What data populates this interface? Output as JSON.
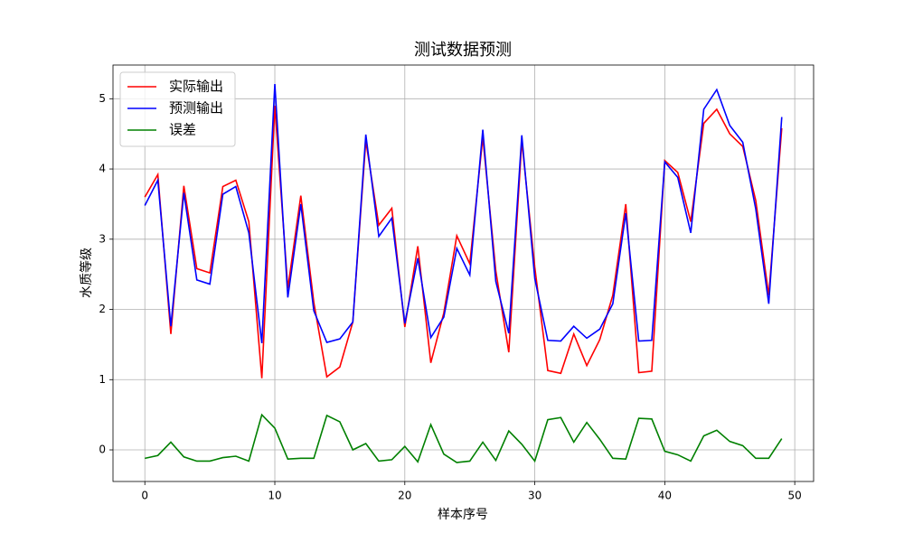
{
  "chart_data": {
    "type": "line",
    "title": "测试数据预测",
    "x_label": "样本序号",
    "y_label": "水质等级",
    "x": [
      0,
      1,
      2,
      3,
      4,
      5,
      6,
      7,
      8,
      9,
      10,
      11,
      12,
      13,
      14,
      15,
      16,
      17,
      18,
      19,
      20,
      21,
      22,
      23,
      24,
      25,
      26,
      27,
      28,
      29,
      30,
      31,
      32,
      33,
      34,
      35,
      36,
      37,
      38,
      39,
      40,
      41,
      42,
      43,
      44,
      45,
      46,
      47,
      48,
      49
    ],
    "series": [
      {
        "name": "实际输出",
        "color": "#ff0000",
        "values": [
          3.6,
          3.92,
          1.65,
          3.76,
          2.58,
          2.52,
          3.75,
          3.84,
          3.25,
          1.02,
          4.9,
          2.3,
          3.62,
          2.1,
          1.04,
          1.18,
          1.82,
          4.4,
          3.2,
          3.44,
          1.75,
          2.9,
          1.24,
          1.95,
          3.05,
          2.65,
          4.45,
          2.55,
          1.39,
          4.4,
          2.6,
          1.13,
          1.09,
          1.65,
          1.2,
          1.57,
          2.2,
          3.5,
          1.1,
          1.12,
          4.12,
          3.95,
          3.25,
          4.65,
          4.85,
          4.5,
          4.32,
          3.55,
          2.2,
          4.58
        ]
      },
      {
        "name": "预测输出",
        "color": "#0000ff",
        "values": [
          3.48,
          3.84,
          1.76,
          3.66,
          2.42,
          2.36,
          3.64,
          3.75,
          3.09,
          1.52,
          5.21,
          2.17,
          3.5,
          1.98,
          1.53,
          1.58,
          1.82,
          4.49,
          3.04,
          3.3,
          1.8,
          2.73,
          1.6,
          1.89,
          2.87,
          2.49,
          4.56,
          2.4,
          1.66,
          4.48,
          2.44,
          1.56,
          1.55,
          1.76,
          1.59,
          1.72,
          2.08,
          3.37,
          1.55,
          1.56,
          4.1,
          3.88,
          3.09,
          4.85,
          5.13,
          4.62,
          4.38,
          3.43,
          2.08,
          4.74
        ]
      },
      {
        "name": "误差",
        "color": "#008000",
        "values": [
          -0.12,
          -0.08,
          0.11,
          -0.1,
          -0.16,
          -0.16,
          -0.11,
          -0.09,
          -0.16,
          0.5,
          0.31,
          -0.13,
          -0.12,
          -0.12,
          0.49,
          0.4,
          0.0,
          0.09,
          -0.16,
          -0.14,
          0.05,
          -0.17,
          0.36,
          -0.06,
          -0.18,
          -0.16,
          0.11,
          -0.15,
          0.27,
          0.08,
          -0.16,
          0.43,
          0.46,
          0.11,
          0.39,
          0.15,
          -0.12,
          -0.13,
          0.45,
          0.44,
          -0.02,
          -0.07,
          -0.16,
          0.2,
          0.28,
          0.12,
          0.06,
          -0.12,
          -0.12,
          0.16
        ]
      }
    ],
    "xlim": [
      -2.45,
      51.45
    ],
    "ylim": [
      -0.45,
      5.48
    ],
    "xticks": [
      0,
      10,
      20,
      30,
      40,
      50
    ],
    "yticks": [
      0,
      1,
      2,
      3,
      4,
      5
    ],
    "grid": true,
    "legend": "upper left"
  }
}
